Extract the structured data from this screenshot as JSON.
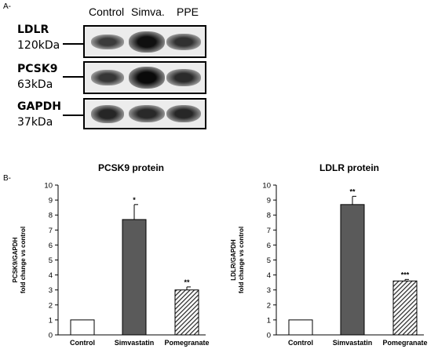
{
  "panels": {
    "a_label": "A-",
    "b_label": "B-"
  },
  "blot": {
    "lanes": [
      "Control",
      "Simva.",
      "PPE"
    ],
    "rows": [
      {
        "name": "LDLR",
        "size": "120kDa",
        "intensities": [
          0.55,
          0.95,
          0.65
        ]
      },
      {
        "name": "PCSK9",
        "size": "63kDa",
        "intensities": [
          0.6,
          1.0,
          0.7
        ]
      },
      {
        "name": "GAPDH",
        "size": "37kDa",
        "intensities": [
          0.75,
          0.72,
          0.74
        ]
      }
    ]
  },
  "chart_data": [
    {
      "type": "bar",
      "title": "PCSK9 protein",
      "ylabel_line1": "PCSK9/GAPDH",
      "ylabel_line2": "fold change vs control",
      "categories": [
        "Control",
        "Simvastatin",
        "Pomegranate"
      ],
      "values": [
        1,
        7.7,
        3.0
      ],
      "errors": [
        0,
        1.0,
        0.2
      ],
      "significance": [
        "",
        "*",
        "**"
      ],
      "fills": [
        "white",
        "gray",
        "hatched"
      ],
      "ylim": [
        0,
        10
      ],
      "yticks": [
        "0",
        "1",
        "2",
        "3",
        "4",
        "5",
        "6",
        "7",
        "8",
        "9",
        "10"
      ]
    },
    {
      "type": "bar",
      "title": "LDLR protein",
      "ylabel_line1": "LDLR/GAPDH",
      "ylabel_line2": "fold change vs control",
      "categories": [
        "Control",
        "Simvastatin",
        "Pomegranate"
      ],
      "values": [
        1,
        8.7,
        3.6
      ],
      "errors": [
        0,
        0.55,
        0.1
      ],
      "significance": [
        "",
        "**",
        "***"
      ],
      "fills": [
        "white",
        "gray",
        "hatched"
      ],
      "ylim": [
        0,
        10
      ],
      "yticks": [
        "0",
        "1",
        "2",
        "3",
        "4",
        "5",
        "6",
        "7",
        "8",
        "9",
        "10"
      ]
    }
  ],
  "colors": {
    "bar_gray": "#5a5a5a",
    "band_dark": "#101010"
  }
}
